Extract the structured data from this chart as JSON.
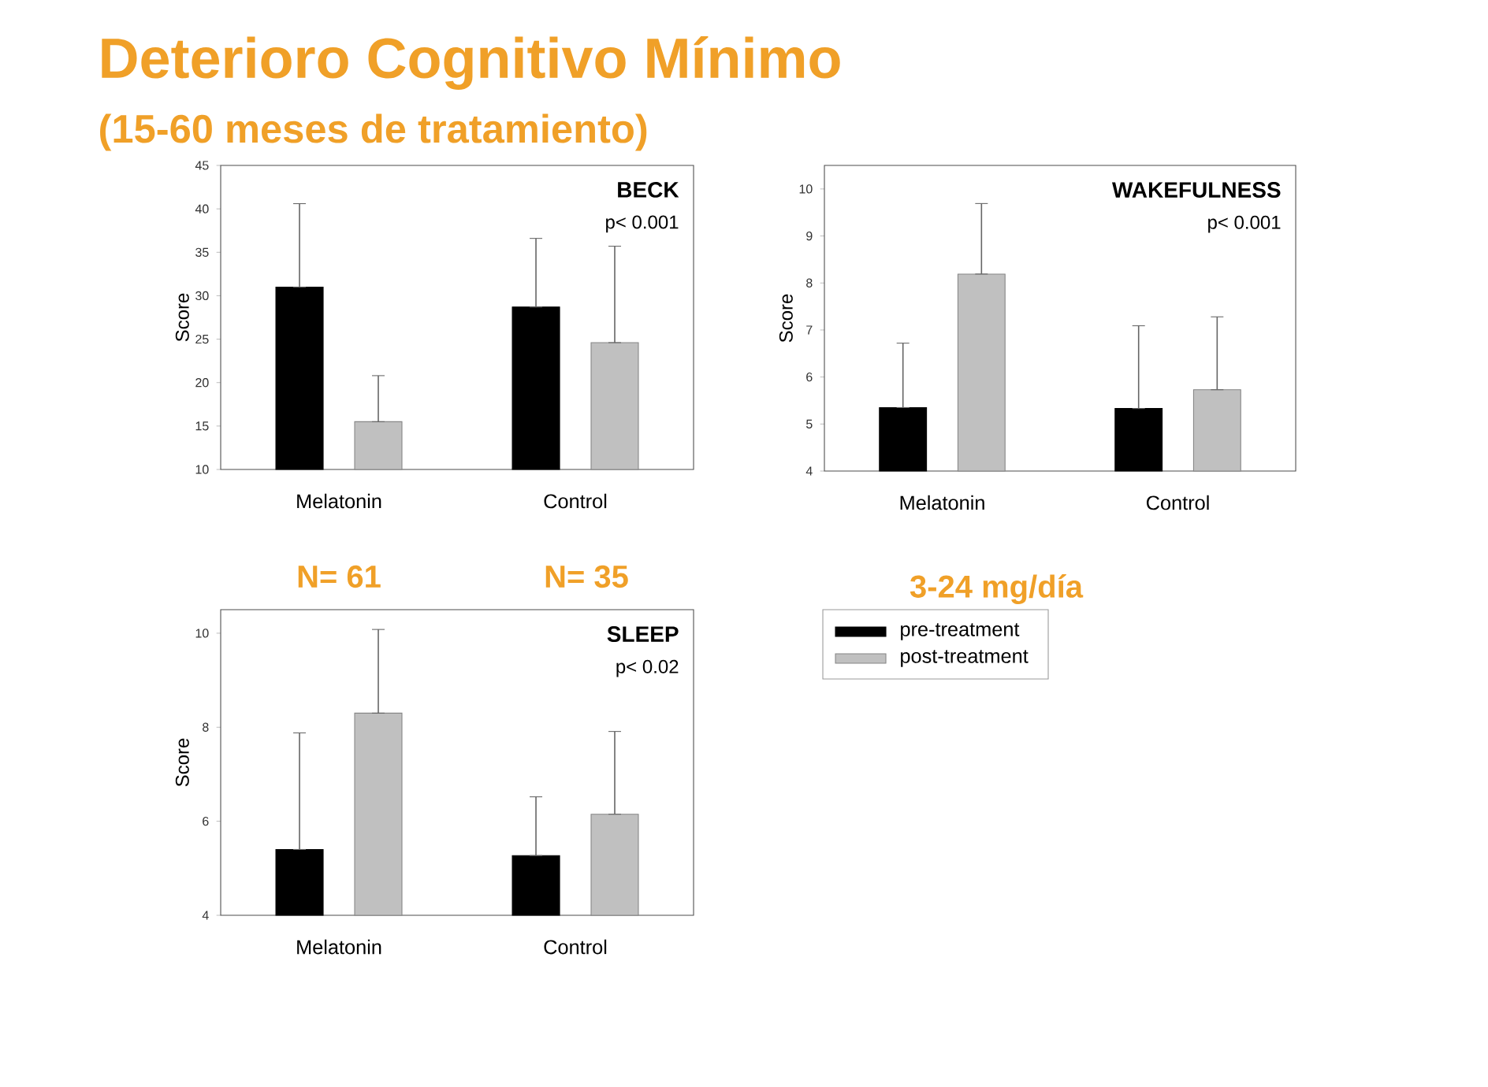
{
  "chart_data": [
    {
      "type": "bar",
      "title": "BECK",
      "subtitle": "p< 0.001",
      "ylabel": "Score",
      "categories": [
        "Melatonin",
        "Control"
      ],
      "series": [
        {
          "color": "#000000",
          "values": [
            31.0,
            28.7
          ],
          "errors": [
            [
              31.0,
              40.6
            ],
            [
              28.7,
              36.6
            ]
          ]
        },
        {
          "color": "#c0c0c0",
          "values": [
            15.5,
            24.6
          ],
          "errors": [
            [
              15.5,
              20.8
            ],
            [
              24.6,
              35.7
            ]
          ]
        }
      ],
      "ylim": [
        10,
        45
      ],
      "yticks": [
        10,
        15,
        20,
        25,
        30,
        35,
        40,
        45
      ],
      "grid": false,
      "legend": false,
      "annotations": [
        "Deterioro Cognitivo Mínimo",
        "(15-60 meses de tratamiento)",
        "N= 61",
        "N= 35"
      ]
    },
    {
      "type": "bar",
      "title": "WAKEFULNESS",
      "subtitle": "p< 0.001",
      "ylabel": "Score",
      "categories": [
        "Melatonin",
        "Control"
      ],
      "series": [
        {
          "color": "#000000",
          "values": [
            5.35,
            5.33
          ],
          "errors": [
            [
              5.35,
              6.72
            ],
            [
              5.33,
              7.09
            ]
          ]
        },
        {
          "color": "#c0c0c0",
          "values": [
            8.19,
            5.73
          ],
          "errors": [
            [
              8.19,
              9.69
            ],
            [
              5.73,
              7.28
            ]
          ]
        }
      ],
      "ylim": [
        4,
        10.5
      ],
      "yticks": [
        4,
        5,
        6,
        7,
        8,
        9,
        10
      ],
      "grid": false,
      "legend": false,
      "annotations": [
        "3-24 mg/día"
      ]
    },
    {
      "type": "bar",
      "title": "SLEEP",
      "subtitle": "p< 0.02",
      "ylabel": "Score",
      "categories": [
        "Melatonin",
        "Control"
      ],
      "series": [
        {
          "name": "pre-treatment",
          "color": "#000000",
          "values": [
            5.4,
            5.27
          ],
          "errors": [
            [
              5.4,
              7.88
            ],
            [
              5.27,
              6.52
            ]
          ]
        },
        {
          "name": "post-treatment",
          "color": "#c0c0c0",
          "values": [
            8.3,
            6.15
          ],
          "errors": [
            [
              8.3,
              10.08
            ],
            [
              6.15,
              7.91
            ]
          ]
        }
      ],
      "ylim": [
        4,
        10.5
      ],
      "yticks": [
        4,
        6,
        8,
        10
      ],
      "grid": false,
      "legend": "right"
    }
  ]
}
